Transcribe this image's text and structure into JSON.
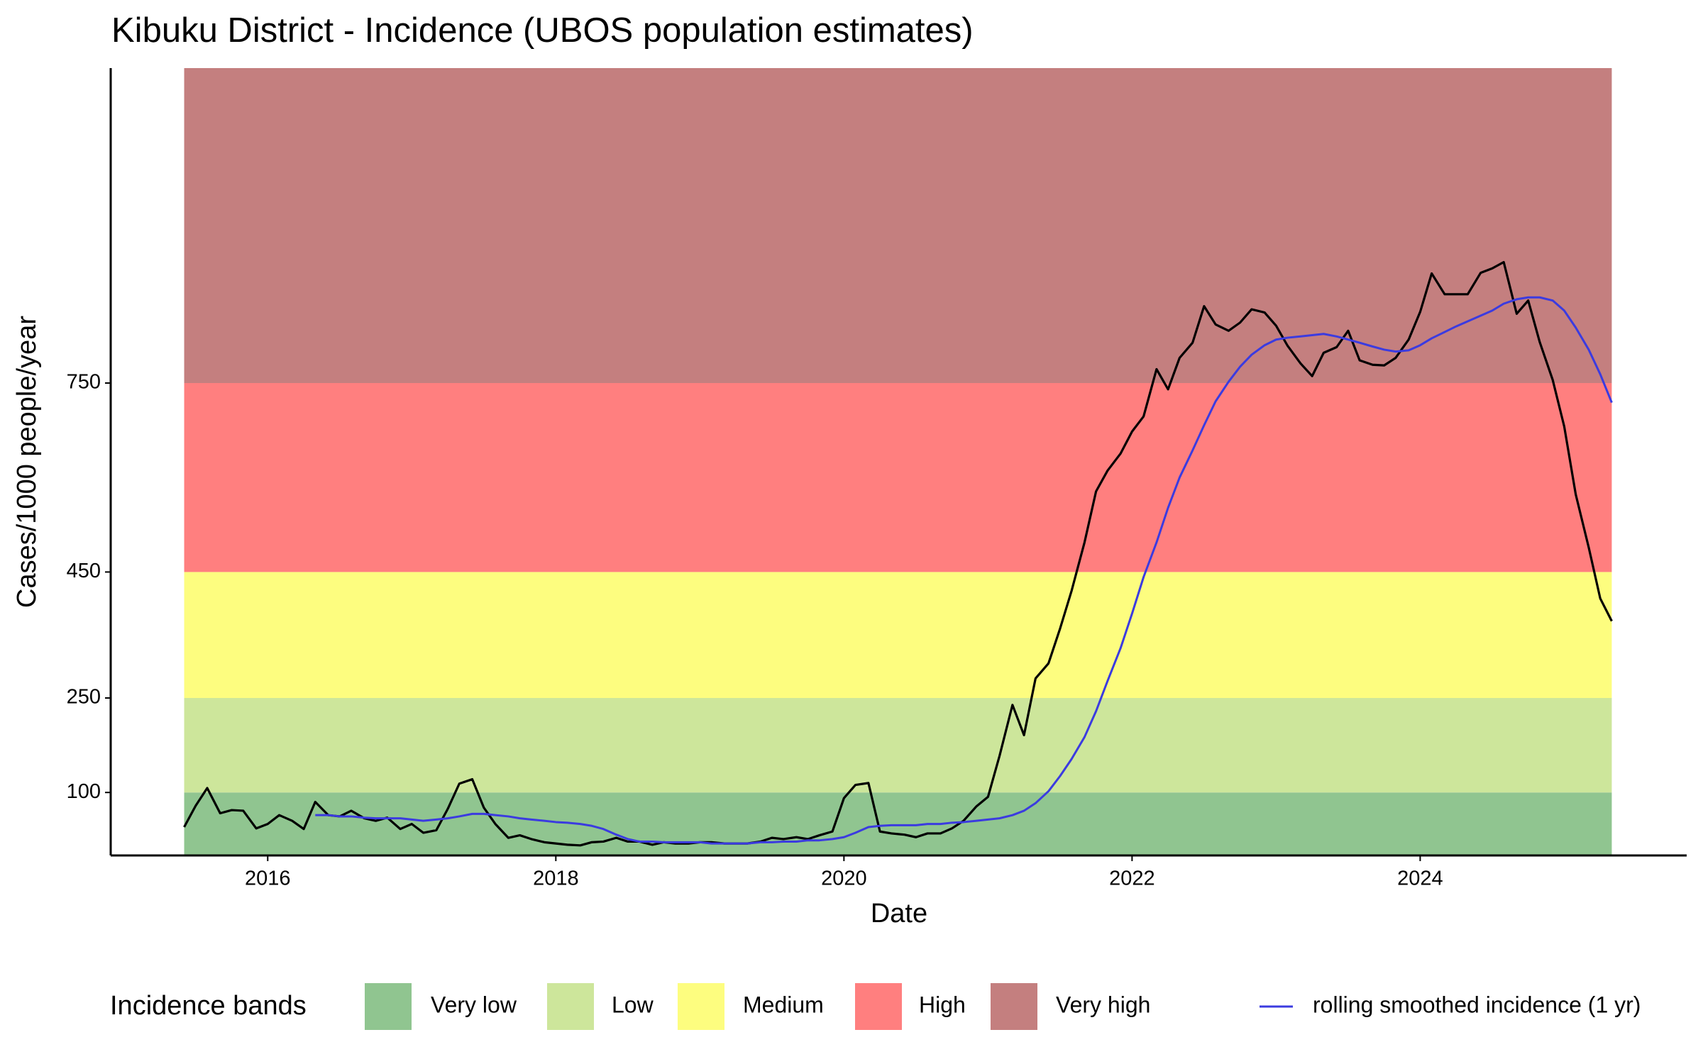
{
  "chart_data": {
    "type": "line",
    "title": "Kibuku District - Incidence (UBOS population estimates)",
    "x_label": "Date",
    "y_label": "Cases/1000 people/year",
    "xlim": [
      2014.91,
      2025.85
    ],
    "xticks": [
      2016,
      2018,
      2020,
      2022,
      2024
    ],
    "ylim": [
      0,
      1250
    ],
    "yticks": [
      100,
      250,
      450,
      750
    ],
    "grid": false,
    "legend_position": "bottom",
    "bands": {
      "title": "Incidence bands",
      "items": [
        {
          "name": "Very low",
          "range": [
            0,
            100
          ],
          "color": "#90c590"
        },
        {
          "name": "Low",
          "range": [
            100,
            250
          ],
          "color": "#cde69b"
        },
        {
          "name": "Medium",
          "range": [
            250,
            450
          ],
          "color": "#fdfd7f"
        },
        {
          "name": "High",
          "range": [
            450,
            750
          ],
          "color": "#ff7f7f"
        },
        {
          "name": "Very high",
          "range": [
            750,
            1250
          ],
          "color": "#c47f7f"
        }
      ]
    },
    "x": [
      2015.42,
      2015.5,
      2015.58,
      2015.67,
      2015.75,
      2015.83,
      2015.92,
      2016.0,
      2016.08,
      2016.17,
      2016.25,
      2016.33,
      2016.42,
      2016.5,
      2016.58,
      2016.67,
      2016.75,
      2016.83,
      2016.92,
      2017.0,
      2017.08,
      2017.17,
      2017.25,
      2017.33,
      2017.42,
      2017.5,
      2017.58,
      2017.67,
      2017.75,
      2017.83,
      2017.92,
      2018.0,
      2018.08,
      2018.17,
      2018.25,
      2018.33,
      2018.42,
      2018.5,
      2018.58,
      2018.67,
      2018.75,
      2018.83,
      2018.92,
      2019.0,
      2019.08,
      2019.17,
      2019.25,
      2019.33,
      2019.42,
      2019.5,
      2019.58,
      2019.67,
      2019.75,
      2019.83,
      2019.92,
      2020.0,
      2020.08,
      2020.17,
      2020.25,
      2020.33,
      2020.42,
      2020.5,
      2020.58,
      2020.67,
      2020.75,
      2020.83,
      2020.92,
      2021.0,
      2021.08,
      2021.17,
      2021.25,
      2021.33,
      2021.42,
      2021.5,
      2021.58,
      2021.67,
      2021.75,
      2021.83,
      2021.92,
      2022.0,
      2022.08,
      2022.17,
      2022.25,
      2022.33,
      2022.42,
      2022.5,
      2022.58,
      2022.67,
      2022.75,
      2022.83,
      2022.92,
      2023.0,
      2023.08,
      2023.17,
      2023.25,
      2023.33,
      2023.42,
      2023.5,
      2023.58,
      2023.67,
      2023.75,
      2023.83,
      2023.92,
      2024.0,
      2024.08,
      2024.17,
      2024.25,
      2024.33,
      2024.42,
      2024.5,
      2024.58,
      2024.67,
      2024.75,
      2024.83,
      2024.92,
      2025.0,
      2025.08,
      2025.17,
      2025.25,
      2025.33
    ],
    "series": [
      {
        "color": "#000000",
        "values": [
          45,
          79,
          107,
          67,
          72,
          71,
          43,
          50,
          64,
          55,
          42,
          85,
          64,
          62,
          71,
          59,
          55,
          60,
          42,
          50,
          36,
          40,
          74,
          114,
          121,
          76,
          50,
          28,
          32,
          26,
          21,
          19,
          17,
          16,
          21,
          22,
          28,
          22,
          22,
          17,
          21,
          19,
          19,
          21,
          21,
          19,
          19,
          19,
          22,
          28,
          26,
          29,
          26,
          32,
          38,
          91,
          112,
          115,
          38,
          35,
          33,
          29,
          35,
          35,
          43,
          55,
          78,
          93,
          158,
          239,
          191,
          281,
          305,
          360,
          420,
          497,
          578,
          611,
          638,
          673,
          697,
          772,
          740,
          790,
          814,
          872,
          843,
          833,
          846,
          867,
          862,
          841,
          809,
          781,
          761,
          798,
          807,
          833,
          786,
          779,
          778,
          790,
          819,
          863,
          924,
          891,
          891,
          891,
          925,
          932,
          942,
          860,
          881,
          815,
          755,
          681,
          573,
          489,
          408,
          372
        ]
      },
      {
        "name": "rolling smoothed incidence (1 yr)",
        "color": "#3b3be0",
        "values": [
          null,
          null,
          null,
          null,
          null,
          null,
          null,
          null,
          null,
          null,
          null,
          64,
          64,
          62,
          62,
          60,
          59,
          59,
          59,
          57,
          55,
          57,
          59,
          62,
          66,
          66,
          64,
          62,
          59,
          57,
          55,
          53,
          52,
          50,
          47,
          42,
          33,
          26,
          22,
          22,
          21,
          21,
          21,
          21,
          19,
          19,
          19,
          19,
          21,
          21,
          22,
          22,
          24,
          24,
          26,
          29,
          36,
          45,
          47,
          48,
          48,
          48,
          50,
          50,
          52,
          53,
          55,
          57,
          59,
          64,
          71,
          83,
          102,
          126,
          153,
          188,
          229,
          277,
          329,
          384,
          442,
          497,
          552,
          600,
          643,
          683,
          721,
          752,
          776,
          795,
          810,
          819,
          822,
          824,
          826,
          828,
          824,
          819,
          814,
          808,
          803,
          800,
          802,
          810,
          821,
          831,
          840,
          848,
          857,
          865,
          876,
          883,
          886,
          886,
          881,
          865,
          838,
          803,
          764,
          719
        ]
      }
    ]
  }
}
